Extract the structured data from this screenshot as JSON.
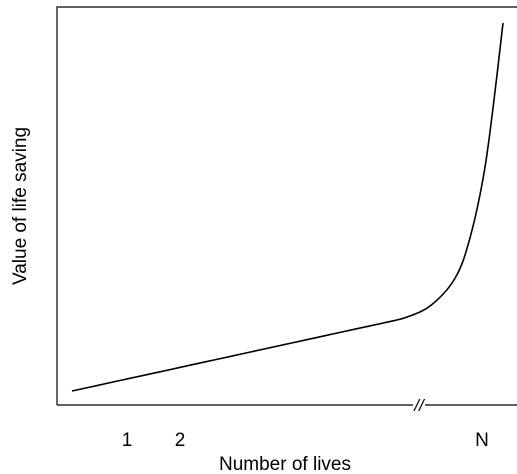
{
  "chart_data": {
    "type": "line",
    "title": "",
    "xlabel": "Number of lives",
    "ylabel": "Value of life saving",
    "x_tick_labels": [
      "1",
      "2",
      "N"
    ],
    "axis_break_mark": "//",
    "grid": false,
    "legend": "none",
    "line_color": "#000000",
    "series": [
      {
        "values_xy": [
          [
            0.0,
            0.0
          ],
          [
            0.5,
            0.064
          ],
          [
            1.0,
            0.128
          ],
          [
            1.5,
            0.192
          ],
          [
            2.0,
            0.256
          ],
          [
            2.5,
            0.32
          ],
          [
            3.0,
            0.384
          ],
          [
            3.5,
            0.448
          ],
          [
            4.0,
            0.512
          ],
          [
            4.5,
            0.576
          ],
          [
            5.0,
            0.64
          ],
          [
            5.5,
            0.704
          ],
          [
            6.0,
            0.768
          ],
          [
            6.5,
            0.832
          ],
          [
            7.0,
            0.905
          ],
          [
            7.5,
            1.05
          ],
          [
            8.0,
            1.38
          ],
          [
            8.3,
            1.85
          ],
          [
            8.6,
            2.65
          ],
          [
            8.8,
            3.5
          ],
          [
            9.0,
            4.5
          ]
        ]
      }
    ]
  }
}
